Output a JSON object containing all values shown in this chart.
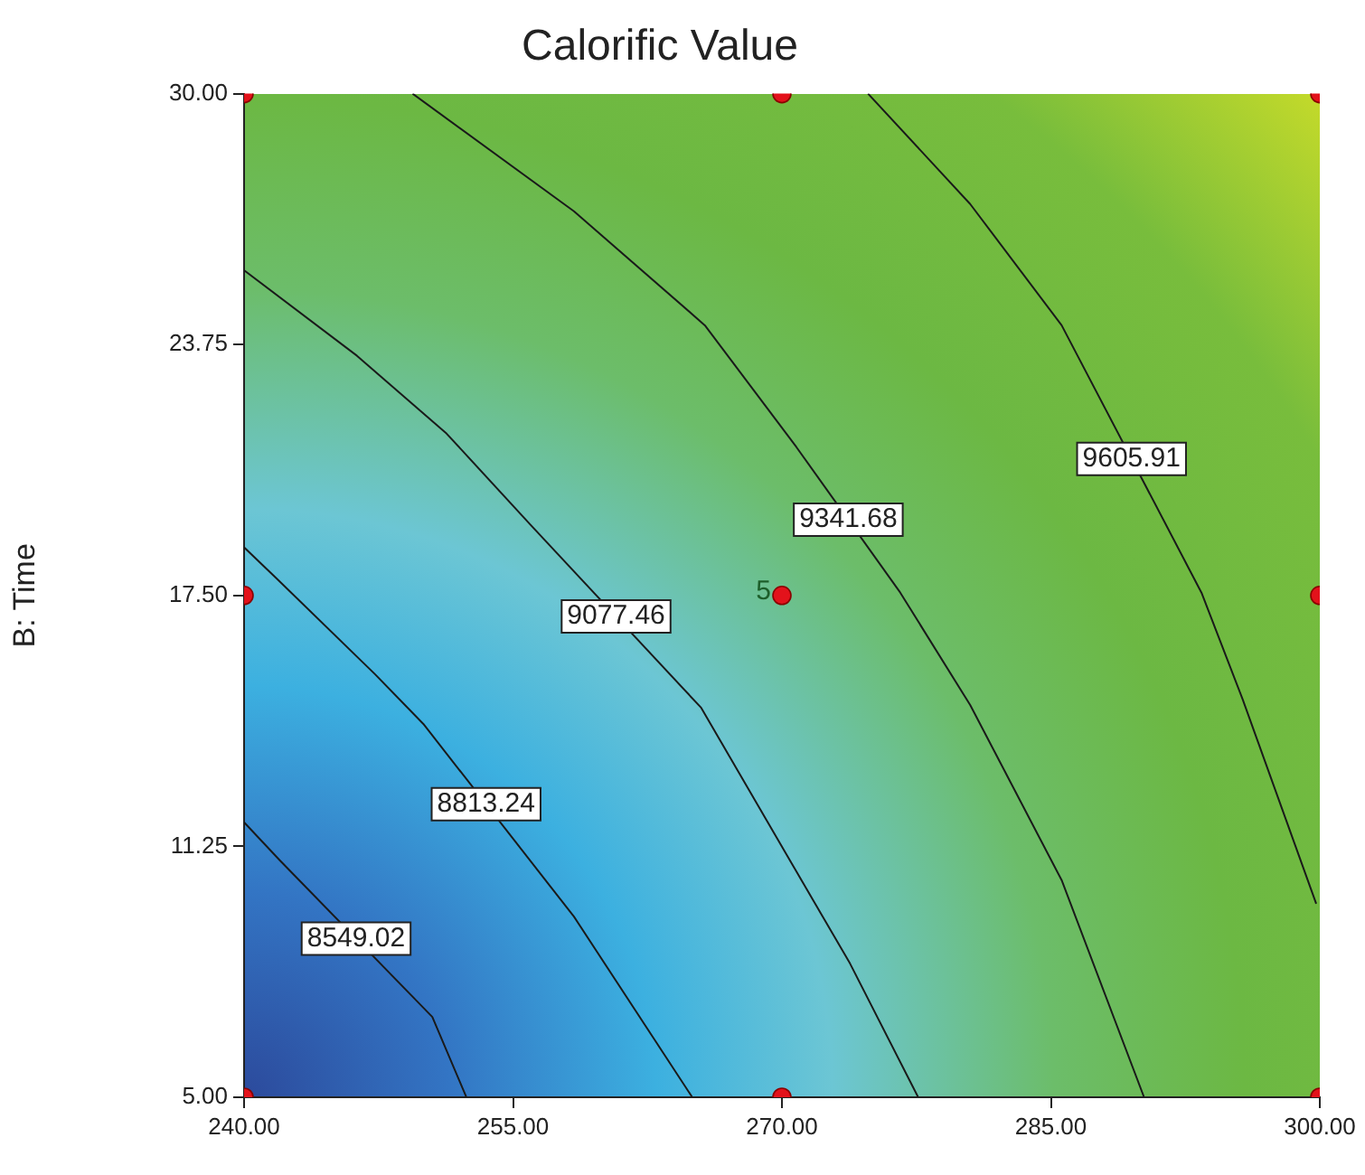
{
  "chart_data": {
    "type": "scatter",
    "title": "Calorific Value",
    "ylabel": "B: Time",
    "xlim": [
      240,
      300
    ],
    "ylim": [
      5,
      30
    ],
    "xticks": [
      {
        "value": 240,
        "label": "240.00"
      },
      {
        "value": 255,
        "label": "255.00"
      },
      {
        "value": 270,
        "label": "270.00"
      },
      {
        "value": 285,
        "label": "285.00"
      },
      {
        "value": 300,
        "label": "300.00"
      }
    ],
    "yticks": [
      {
        "value": 5,
        "label": "5.00"
      },
      {
        "value": 11.25,
        "label": "11.25"
      },
      {
        "value": 17.5,
        "label": "17.50"
      },
      {
        "value": 23.75,
        "label": "23.75"
      },
      {
        "value": 30,
        "label": "30.00"
      }
    ],
    "grid": false,
    "legend": false,
    "marker": "circle",
    "series": [
      {
        "type": "line",
        "name": "8549.02",
        "marker": "none",
        "color": "#1a1a1a",
        "x": [
          240,
          242,
          250.5,
          252.4
        ],
        "values": [
          11.85,
          10.9,
          7.0,
          5
        ]
      },
      {
        "type": "line",
        "name": "8813.24",
        "marker": "none",
        "color": "#1a1a1a",
        "x": [
          240,
          241.8,
          247.3,
          250,
          257,
          258.4,
          265.0
        ],
        "values": [
          18.7,
          17.93,
          15.54,
          14.3,
          10.3,
          9.5,
          5
        ]
      },
      {
        "type": "line",
        "name": "9077.46",
        "marker": "none",
        "color": "#1a1a1a",
        "x": [
          240,
          246.3,
          251.3,
          256,
          265.5,
          270.5,
          273.8,
          277.6
        ],
        "values": [
          25.6,
          23.47,
          21.53,
          19.25,
          14.7,
          10.86,
          8.33,
          5
        ]
      },
      {
        "type": "line",
        "name": "9341.68",
        "marker": "none",
        "color": "#1a1a1a",
        "x": [
          249.4,
          258.4,
          265.7,
          270.8,
          276.6,
          280.5,
          285.6,
          290.2
        ],
        "values": [
          30,
          27.07,
          24.23,
          21.2,
          17.57,
          14.77,
          10.41,
          5
        ]
      },
      {
        "type": "line",
        "name": "9605.91",
        "marker": "none",
        "color": "#1a1a1a",
        "x": [
          274.8,
          280.5,
          285.6,
          293.4,
          295.7,
          299.8
        ],
        "values": [
          30,
          27.25,
          24.23,
          17.57,
          14.91,
          9.82
        ]
      },
      {
        "color": "#e3121b",
        "x": [
          240,
          270,
          300,
          240,
          270,
          300,
          240,
          270,
          300
        ],
        "values": [
          5,
          5,
          5,
          17.5,
          17.5,
          17.5,
          30,
          30,
          30
        ]
      }
    ],
    "annotations": [
      {
        "text": "5",
        "x": 270,
        "y": 17.5
      }
    ]
  }
}
